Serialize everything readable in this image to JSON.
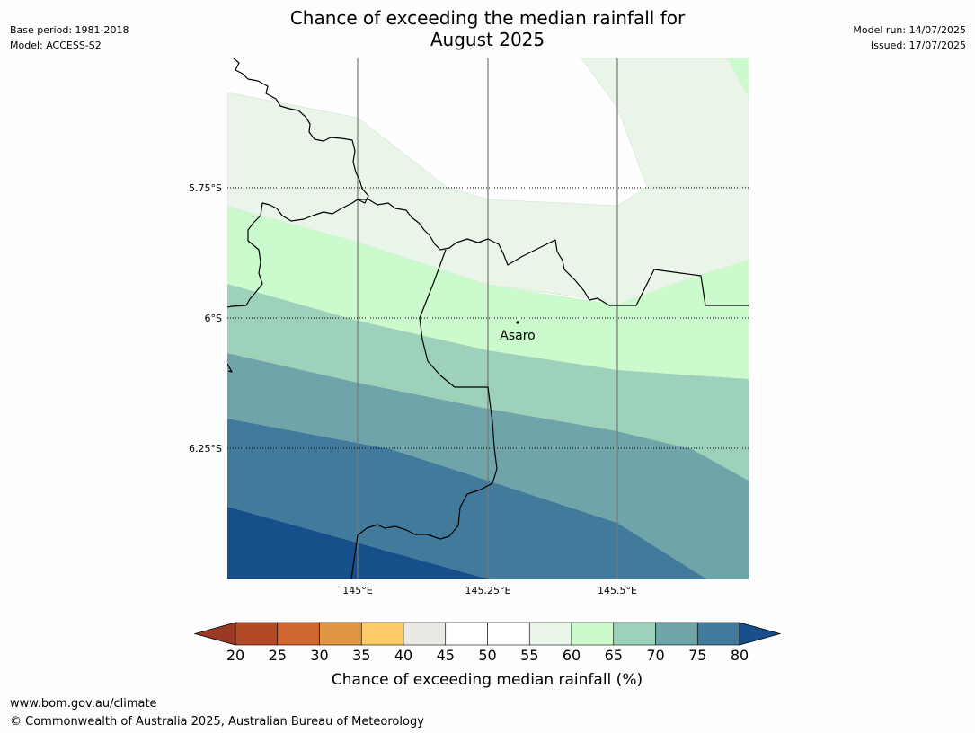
{
  "header": {
    "title_line1": "Chance of exceeding the median rainfall for",
    "title_line2": "August 2025",
    "base_period": "Base period: 1981-2018",
    "model": "Model: ACCESS-S2",
    "model_run": "Model run: 14/07/2025",
    "issued": "Issued: 17/07/2025"
  },
  "map": {
    "lat_labels": [
      "5.75°S",
      "6°S",
      "6.25°S"
    ],
    "lon_labels": [
      "145°E",
      "145.25°E",
      "145.5°E"
    ],
    "place": {
      "name": "Asaro"
    }
  },
  "colorbar": {
    "ticks": [
      "20",
      "25",
      "30",
      "35",
      "40",
      "45",
      "50",
      "55",
      "60",
      "65",
      "70",
      "75",
      "80"
    ],
    "colors": [
      "#9a3a24",
      "#b44a25",
      "#cf6531",
      "#e29545",
      "#fdcc66",
      "#ebe9e4",
      "#ffffff",
      "#ffffff",
      "#eaf5e9",
      "#cbfbcc",
      "#9ed1b9",
      "#6fa4a8",
      "#427a9b",
      "#164f89"
    ],
    "label": "Chance of exceeding median rainfall (%)"
  },
  "footer": {
    "url": "www.bom.gov.au/climate",
    "copyright": "© Commonwealth of Australia 2025, Australian Bureau of Meteorology"
  }
}
